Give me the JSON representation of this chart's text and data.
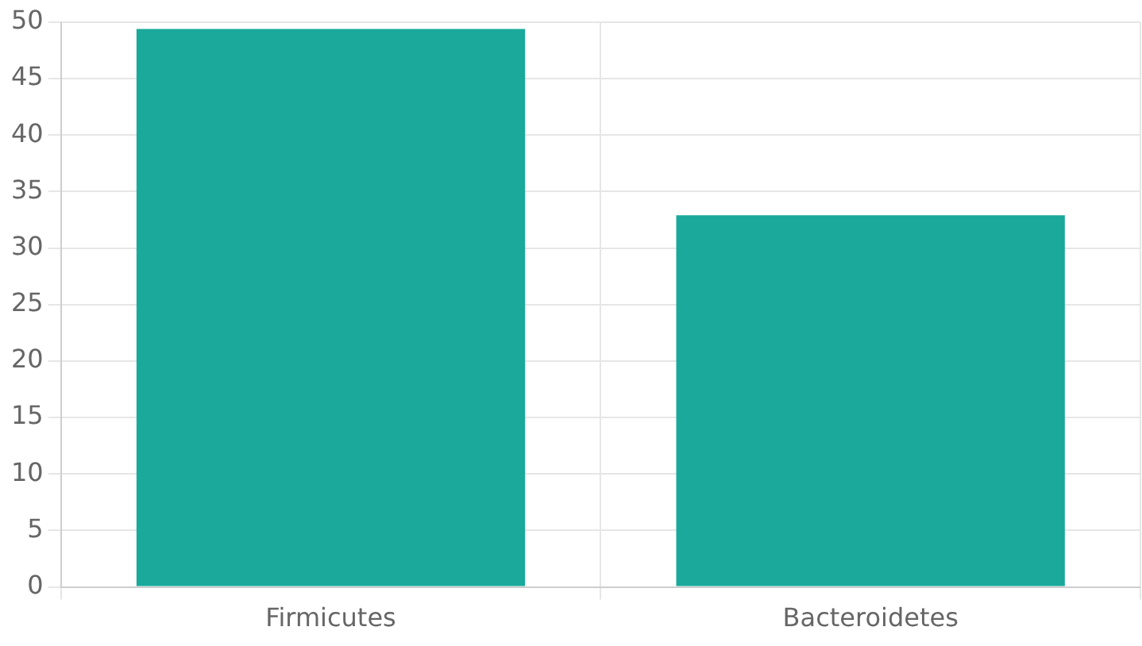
{
  "chart_data": {
    "type": "bar",
    "categories": [
      "Firmicutes",
      "Bacteroidetes"
    ],
    "values": [
      49.4,
      32.9
    ],
    "color": "#1aa99a",
    "ylim": [
      0,
      50
    ],
    "yticks": [
      0,
      5,
      10,
      15,
      20,
      25,
      30,
      35,
      40,
      45,
      50
    ],
    "grid": true
  }
}
